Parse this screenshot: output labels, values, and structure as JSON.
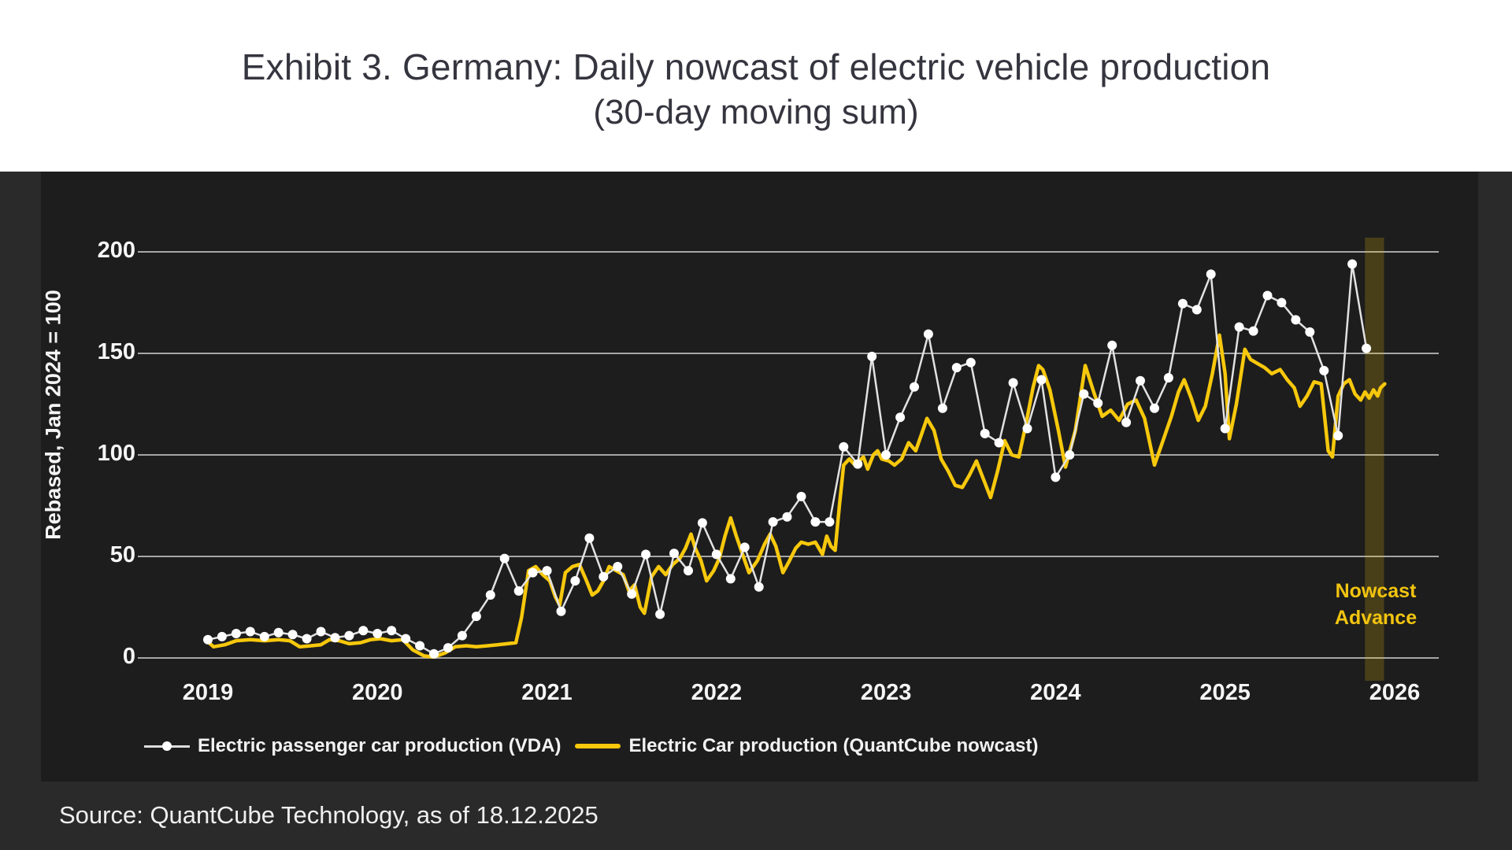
{
  "title": {
    "line1": "Exhibit 3. Germany: Daily nowcast of electric vehicle production",
    "line2": "(30-day moving sum)"
  },
  "source_note": "Source: QuantCube Technology, as of 18.12.2025",
  "chart_data": {
    "type": "line",
    "title": "Exhibit 3. Germany: Daily nowcast of electric vehicle production (30-day moving sum)",
    "ylabel": "Rebased, Jan 2024 = 100",
    "xlabel": "",
    "ylim": [
      0,
      207
    ],
    "grid": true,
    "legend_position": "bottom-left",
    "panel_background": "#1d1d1d",
    "outer_background": "#2a2a2a",
    "gridline_color": "#a6a6a6",
    "y_ticks": [
      0,
      50,
      100,
      150,
      200
    ],
    "x_ticks": [
      "2019",
      "2020",
      "2021",
      "2022",
      "2023",
      "2024",
      "2025",
      "2026"
    ],
    "x_unit": "months since Jan 2019",
    "series": [
      {
        "name": "Electric passenger car production (VDA)",
        "color": "#e2e2e2",
        "marker_color": "#ffffff",
        "style": "line+markers",
        "frequency": "monthly",
        "start": "2019-01",
        "end": "2025-11",
        "values": [
          9,
          10.5,
          12,
          13,
          10.5,
          12.5,
          11.5,
          9.5,
          13,
          10,
          11,
          13.5,
          12,
          13.5,
          9.5,
          6,
          2,
          5,
          11,
          20.5,
          31,
          49,
          33,
          42,
          43,
          23,
          38,
          59,
          40,
          45,
          31.5,
          51,
          21.5,
          51.5,
          43,
          66.5,
          51,
          39,
          54.5,
          35,
          67,
          69.5,
          79.5,
          67,
          67,
          104,
          95.5,
          148.5,
          100,
          118.5,
          133.5,
          159.5,
          123,
          143,
          145.5,
          110.5,
          106,
          135.5,
          113,
          137,
          89,
          100,
          130,
          125.5,
          154,
          116,
          136.5,
          123,
          138,
          174.5,
          171.5,
          189,
          113,
          163,
          161,
          178.5,
          175,
          166.5,
          160.5,
          141.5,
          109.5,
          194,
          152.5
        ]
      },
      {
        "name": "Electric Car production (QuantCube nowcast)",
        "color": "#f7c80c",
        "style": "line",
        "frequency": "daily (approximated)",
        "end": "2025-12-18",
        "points": [
          [
            0,
            8
          ],
          [
            0.4,
            5.5
          ],
          [
            1.2,
            6.5
          ],
          [
            2,
            8.5
          ],
          [
            3,
            9
          ],
          [
            4,
            8.5
          ],
          [
            5,
            9
          ],
          [
            5.8,
            8.5
          ],
          [
            6.5,
            5.5
          ],
          [
            7.3,
            6
          ],
          [
            8,
            6.5
          ],
          [
            8.6,
            9
          ],
          [
            9.3,
            8.5
          ],
          [
            10,
            7
          ],
          [
            10.8,
            7.5
          ],
          [
            11.5,
            9
          ],
          [
            12.2,
            9.5
          ],
          [
            13,
            8.5
          ],
          [
            13.8,
            9
          ],
          [
            14.5,
            4
          ],
          [
            15.3,
            1
          ],
          [
            16,
            0.5
          ],
          [
            16.8,
            2.5
          ],
          [
            17.5,
            5.5
          ],
          [
            18.3,
            6
          ],
          [
            19,
            5.5
          ],
          [
            19.8,
            6
          ],
          [
            20.5,
            6.5
          ],
          [
            21.2,
            7
          ],
          [
            21.8,
            7.5
          ],
          [
            22.2,
            20
          ],
          [
            22.7,
            43
          ],
          [
            23.2,
            45
          ],
          [
            23.7,
            41
          ],
          [
            24.2,
            38
          ],
          [
            24.6,
            30
          ],
          [
            24.9,
            26
          ],
          [
            25.3,
            42
          ],
          [
            25.8,
            45
          ],
          [
            26.3,
            46
          ],
          [
            26.8,
            38
          ],
          [
            27.2,
            31
          ],
          [
            27.6,
            33
          ],
          [
            28,
            38
          ],
          [
            28.4,
            45
          ],
          [
            28.9,
            43
          ],
          [
            29.4,
            41
          ],
          [
            29.8,
            33
          ],
          [
            30.2,
            36
          ],
          [
            30.6,
            25
          ],
          [
            30.9,
            22
          ],
          [
            31.4,
            40
          ],
          [
            31.9,
            45
          ],
          [
            32.4,
            41
          ],
          [
            32.9,
            46
          ],
          [
            33.4,
            49
          ],
          [
            33.8,
            54
          ],
          [
            34.2,
            61
          ],
          [
            34.5,
            54
          ],
          [
            34.9,
            48
          ],
          [
            35.3,
            38
          ],
          [
            35.8,
            43
          ],
          [
            36.2,
            49
          ],
          [
            36.6,
            60
          ],
          [
            37,
            69
          ],
          [
            37.4,
            60
          ],
          [
            37.9,
            50
          ],
          [
            38.3,
            42
          ],
          [
            38.9,
            48
          ],
          [
            39.4,
            56
          ],
          [
            39.8,
            61
          ],
          [
            40.2,
            55
          ],
          [
            40.7,
            42
          ],
          [
            41.1,
            47
          ],
          [
            41.6,
            54
          ],
          [
            42,
            57
          ],
          [
            42.5,
            56
          ],
          [
            43,
            57
          ],
          [
            43.5,
            51
          ],
          [
            43.8,
            60
          ],
          [
            44.1,
            55
          ],
          [
            44.4,
            53
          ],
          [
            44.7,
            75
          ],
          [
            45,
            95
          ],
          [
            45.4,
            98
          ],
          [
            45.8,
            95
          ],
          [
            46.1,
            97
          ],
          [
            46.4,
            99
          ],
          [
            46.7,
            93
          ],
          [
            47.1,
            100
          ],
          [
            47.4,
            102
          ],
          [
            47.7,
            98
          ],
          [
            48.2,
            97
          ],
          [
            48.6,
            95
          ],
          [
            49.1,
            98
          ],
          [
            49.6,
            106
          ],
          [
            50.1,
            102
          ],
          [
            50.5,
            110
          ],
          [
            50.9,
            118
          ],
          [
            51.4,
            112
          ],
          [
            51.9,
            98
          ],
          [
            52.4,
            92
          ],
          [
            52.9,
            85
          ],
          [
            53.4,
            84
          ],
          [
            53.9,
            90
          ],
          [
            54.4,
            97
          ],
          [
            54.9,
            88
          ],
          [
            55.4,
            79
          ],
          [
            55.9,
            92
          ],
          [
            56.4,
            107
          ],
          [
            56.9,
            100
          ],
          [
            57.4,
            99
          ],
          [
            57.9,
            115
          ],
          [
            58.4,
            133
          ],
          [
            58.8,
            144
          ],
          [
            59.1,
            142
          ],
          [
            59.6,
            132
          ],
          [
            60.2,
            112
          ],
          [
            60.7,
            94
          ],
          [
            61.4,
            112
          ],
          [
            62.1,
            144
          ],
          [
            62.7,
            131
          ],
          [
            63.3,
            119
          ],
          [
            63.9,
            122
          ],
          [
            64.5,
            117
          ],
          [
            65.1,
            125
          ],
          [
            65.7,
            127
          ],
          [
            66.3,
            118
          ],
          [
            67,
            95
          ],
          [
            67.5,
            105
          ],
          [
            68.2,
            119
          ],
          [
            68.7,
            131
          ],
          [
            69.1,
            137
          ],
          [
            69.6,
            128
          ],
          [
            70.1,
            117
          ],
          [
            70.6,
            124
          ],
          [
            71.1,
            140
          ],
          [
            71.6,
            159
          ],
          [
            72,
            140
          ],
          [
            72.3,
            108
          ],
          [
            72.8,
            125
          ],
          [
            73.4,
            152
          ],
          [
            73.8,
            147
          ],
          [
            74.3,
            145
          ],
          [
            74.8,
            143
          ],
          [
            75.3,
            140
          ],
          [
            75.9,
            142
          ],
          [
            76.4,
            137
          ],
          [
            76.9,
            133
          ],
          [
            77.3,
            124
          ],
          [
            77.8,
            129
          ],
          [
            78.3,
            136
          ],
          [
            78.8,
            135
          ],
          [
            79.3,
            102
          ],
          [
            79.6,
            99
          ],
          [
            80,
            129
          ],
          [
            80.4,
            135
          ],
          [
            80.8,
            137
          ],
          [
            81.2,
            130
          ],
          [
            81.6,
            127
          ],
          [
            81.9,
            131
          ],
          [
            82.2,
            128
          ],
          [
            82.5,
            132
          ],
          [
            82.8,
            129
          ],
          [
            83,
            133
          ],
          [
            83.3,
            135
          ]
        ]
      }
    ],
    "annotation": {
      "band_label": "Nowcast Advance",
      "band_color": "rgba(247,200,12,0.20)",
      "band_t_range": [
        81.9,
        83.25
      ],
      "label_color": "#f2c40f"
    }
  }
}
